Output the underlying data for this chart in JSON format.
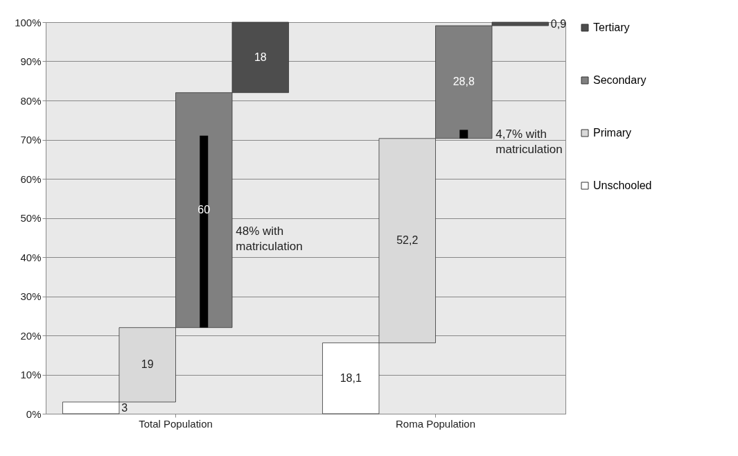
{
  "chart_data": {
    "type": "bar",
    "categories": [
      "Total Population",
      "Roma Population"
    ],
    "series": [
      {
        "name": "Unschooled",
        "color": "#ffffff",
        "base": [
          0,
          0
        ],
        "values": [
          3,
          18.1
        ],
        "value_labels": [
          "3",
          "18,1"
        ]
      },
      {
        "name": "Primary",
        "color": "#d9d9d9",
        "base": [
          3,
          18.1
        ],
        "values": [
          19,
          52.2
        ],
        "value_labels": [
          "19",
          "52,2"
        ]
      },
      {
        "name": "Secondary",
        "color": "#808080",
        "base": [
          22,
          70.3
        ],
        "values": [
          60,
          28.8
        ],
        "value_labels": [
          "60",
          "28,8"
        ]
      },
      {
        "color": "#000000",
        "base": [
          22,
          70.3
        ],
        "values": [
          49,
          2.2
        ]
      },
      {
        "name": "Tertiary",
        "color": "#4d4d4d",
        "base": [
          82,
          99.1
        ],
        "values": [
          18,
          0.9
        ],
        "value_labels": [
          "18",
          "0,9"
        ]
      }
    ],
    "ylim": [
      0,
      100
    ],
    "yticks": [
      {
        "value": 0,
        "label": "0%"
      },
      {
        "value": 10,
        "label": "10%"
      },
      {
        "value": 20,
        "label": "20%"
      },
      {
        "value": 30,
        "label": "30%"
      },
      {
        "value": 40,
        "label": "40%"
      },
      {
        "value": 50,
        "label": "50%"
      },
      {
        "value": 60,
        "label": "60%"
      },
      {
        "value": 70,
        "label": "70%"
      },
      {
        "value": 80,
        "label": "80%"
      },
      {
        "value": 90,
        "label": "90%"
      },
      {
        "value": 100,
        "label": "100%"
      }
    ],
    "grid": "y",
    "legend": "right",
    "annotations": [
      "48% with\nmatriculation",
      "4,7% with\nmatriculation"
    ]
  }
}
